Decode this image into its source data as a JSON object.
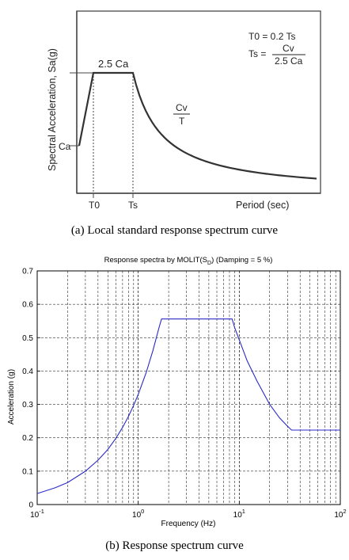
{
  "figure_a": {
    "caption": "(a) Local standard response spectrum curve",
    "ylabel": "Spectral Acceleration, Sa(g)",
    "xlabel": "Period (sec)",
    "plateau_label": "2.5 Ca",
    "start_label": "Ca",
    "decay_label_num": "Cv",
    "decay_label_den": "T",
    "tick_t0": "T0",
    "tick_ts": "Ts",
    "eq1": "T0 = 0.2 Ts",
    "eq2_lhs": "Ts =",
    "eq2_num": "Cv",
    "eq2_den": "2.5 Ca"
  },
  "figure_b": {
    "caption": "(b) Response spectrum curve",
    "title": "Response spectra by MOLIT(SD) (Damping = 5 %)",
    "title_main": "Response spectra by MOLIT(S",
    "title_sub": "D",
    "title_rest": ") (Damping = 5 %)",
    "ylabel": "Acceleration (g)",
    "xlabel": "Frequency (Hz)",
    "y_tick_labels": [
      "0",
      "0.1",
      "0.2",
      "0.3",
      "0.4",
      "0.5",
      "0.6",
      "0.7"
    ],
    "x_tick_labels": [
      {
        "base": "10",
        "exp": "-1"
      },
      {
        "base": "10",
        "exp": "0"
      },
      {
        "base": "10",
        "exp": "1"
      },
      {
        "base": "10",
        "exp": "2"
      }
    ]
  },
  "chart_data": [
    {
      "type": "line",
      "title": "",
      "xlabel": "Period (sec)",
      "ylabel": "Spectral Acceleration, Sa(g)",
      "series": [
        {
          "values_description_free": true,
          "x": [
            0,
            0.2,
            1.0,
            1.4,
            2.0,
            3.0,
            4.0,
            5.0,
            6.5
          ],
          "y": [
            0.4,
            1.0,
            1.0,
            0.714,
            0.5,
            0.333,
            0.25,
            0.2,
            0.154
          ]
        }
      ]
    },
    {
      "type": "line",
      "title": "Response spectra by MOLIT(SD) (Damping = 5 %)",
      "xlabel": "Frequency (Hz)",
      "ylabel": "Acceleration (g)",
      "xscale": "log",
      "xlim": [
        0.1,
        100
      ],
      "ylim": [
        0,
        0.7
      ],
      "grid": true,
      "series": [
        {
          "color": "#2b2bc8",
          "x": [
            0.1,
            0.15,
            0.2,
            0.3,
            0.4,
            0.5,
            0.6,
            0.7,
            0.8,
            0.9,
            1.0,
            1.2,
            1.4,
            1.6,
            1.7,
            3,
            5,
            8.5,
            9,
            12,
            15,
            20,
            25,
            30,
            33,
            50,
            100
          ],
          "y": [
            0.033,
            0.05,
            0.066,
            0.1,
            0.133,
            0.165,
            0.198,
            0.231,
            0.264,
            0.297,
            0.33,
            0.396,
            0.462,
            0.528,
            0.556,
            0.556,
            0.556,
            0.556,
            0.53,
            0.43,
            0.37,
            0.3,
            0.26,
            0.235,
            0.223,
            0.223,
            0.223
          ]
        }
      ]
    }
  ]
}
